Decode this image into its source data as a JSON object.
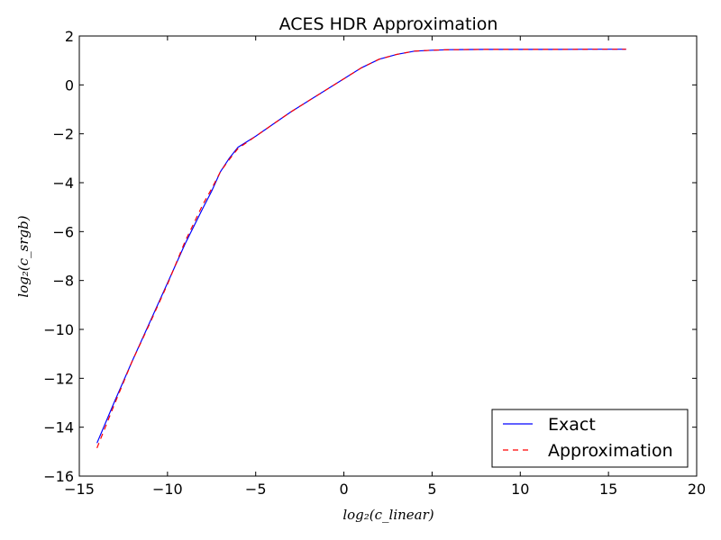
{
  "chart_data": {
    "type": "line",
    "title": "ACES HDR Approximation",
    "xlabel": "log₂(c_linear)",
    "ylabel": "log₂(c_srgb)",
    "xlim": [
      -15,
      20
    ],
    "ylim": [
      -16,
      2
    ],
    "xticks": [
      -15,
      -10,
      -5,
      0,
      5,
      10,
      15,
      20
    ],
    "xtick_labels": [
      "−15",
      "−10",
      "−5",
      "0",
      "5",
      "10",
      "15",
      "20"
    ],
    "yticks": [
      -16,
      -14,
      -12,
      -10,
      -8,
      -6,
      -4,
      -2,
      0,
      2
    ],
    "ytick_labels": [
      "−16",
      "−14",
      "−12",
      "−10",
      "−8",
      "−6",
      "−4",
      "−2",
      "0",
      "2"
    ],
    "grid": false,
    "legend_position": "bottom-right",
    "series": [
      {
        "name": "Exact",
        "color": "#0000ff",
        "style": "solid",
        "x": [
          -14,
          -13,
          -12,
          -11,
          -10,
          -9,
          -8,
          -7.5,
          -7,
          -6.5,
          -6,
          -5,
          -4,
          -3,
          -2,
          -1,
          0,
          1,
          2,
          3,
          4,
          5,
          6,
          8,
          10,
          12,
          14,
          16
        ],
        "y": [
          -14.65,
          -12.95,
          -11.3,
          -9.7,
          -8.1,
          -6.5,
          -5.05,
          -4.35,
          -3.55,
          -3.0,
          -2.55,
          -2.1,
          -1.6,
          -1.1,
          -0.65,
          -0.2,
          0.25,
          0.7,
          1.05,
          1.25,
          1.38,
          1.42,
          1.44,
          1.45,
          1.45,
          1.45,
          1.46,
          1.46
        ]
      },
      {
        "name": "Approximation",
        "color": "#ff0000",
        "style": "dashed",
        "x": [
          -14,
          -13,
          -12,
          -11,
          -10,
          -9,
          -8,
          -7.5,
          -7,
          -6.5,
          -6,
          -5,
          -4,
          -3,
          -2,
          -1,
          0,
          1,
          2,
          3,
          4,
          5,
          6,
          8,
          10,
          12,
          14,
          16
        ],
        "y": [
          -14.85,
          -13.05,
          -11.3,
          -9.75,
          -8.15,
          -6.4,
          -4.9,
          -4.25,
          -3.55,
          -3.05,
          -2.6,
          -2.1,
          -1.6,
          -1.1,
          -0.65,
          -0.2,
          0.25,
          0.7,
          1.05,
          1.25,
          1.38,
          1.42,
          1.44,
          1.45,
          1.45,
          1.45,
          1.46,
          1.46
        ]
      }
    ]
  }
}
